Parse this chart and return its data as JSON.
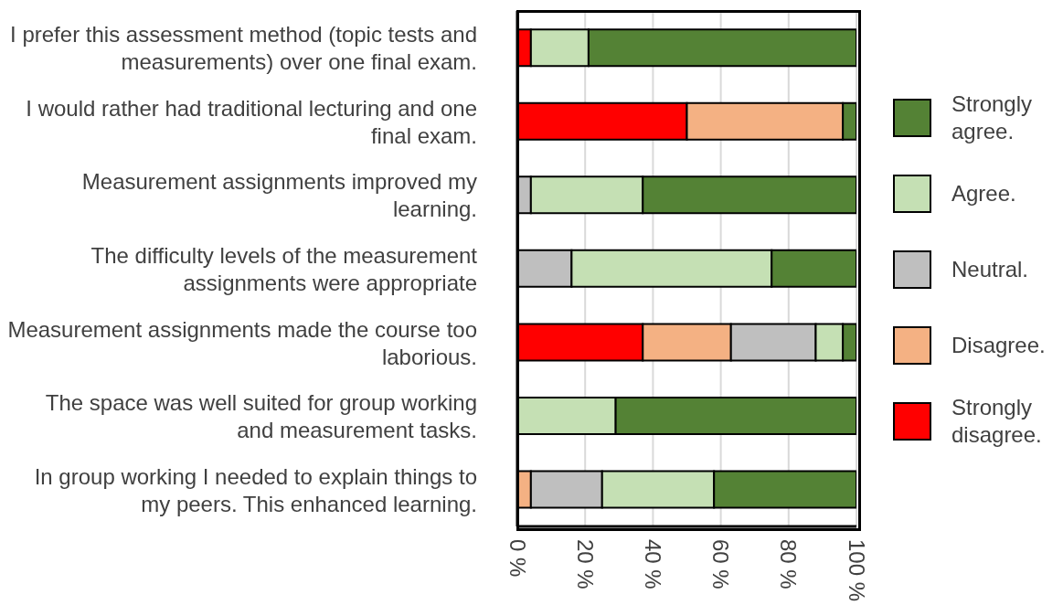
{
  "chart_data": {
    "type": "bar",
    "orientation": "horizontal",
    "stacked": true,
    "categories": [
      "I prefer this assessment method (topic tests and measurements) over one final exam.",
      "I would rather had traditional lecturing and one final exam.",
      "Measurement assignments improved  my learning.",
      "The difficulty levels of the measurement assignments were appropriate",
      "Measurement assignments made the course too laborious.",
      "The space was well suited for group working and measurement tasks.",
      "In group working I needed to explain things to my peers. This enhanced learning."
    ],
    "series": [
      {
        "name": "Strongly disagree.",
        "color": "#ff0000",
        "values": [
          4,
          50,
          0,
          0,
          37,
          0,
          0
        ]
      },
      {
        "name": "Disagree.",
        "color": "#f4b183",
        "values": [
          0,
          46,
          0,
          0,
          26,
          0,
          4
        ]
      },
      {
        "name": "Neutral.",
        "color": "#bfbfbf",
        "values": [
          0,
          0,
          4,
          16,
          25,
          0,
          21
        ]
      },
      {
        "name": "Agree.",
        "color": "#c5e0b4",
        "values": [
          17,
          0,
          33,
          59,
          8,
          29,
          33
        ]
      },
      {
        "name": "Strongly agree.",
        "color": "#548235",
        "values": [
          79,
          4,
          63,
          25,
          4,
          71,
          42
        ]
      }
    ],
    "xlim": [
      0,
      100
    ],
    "xticks": [
      {
        "value": 0,
        "label": "0 %"
      },
      {
        "value": 20,
        "label": "20 %"
      },
      {
        "value": 40,
        "label": "40 %"
      },
      {
        "value": 60,
        "label": "60 %"
      },
      {
        "value": 80,
        "label": "80 %"
      },
      {
        "value": 100,
        "label": "100 %"
      }
    ],
    "grid": "x",
    "legend": "right"
  }
}
